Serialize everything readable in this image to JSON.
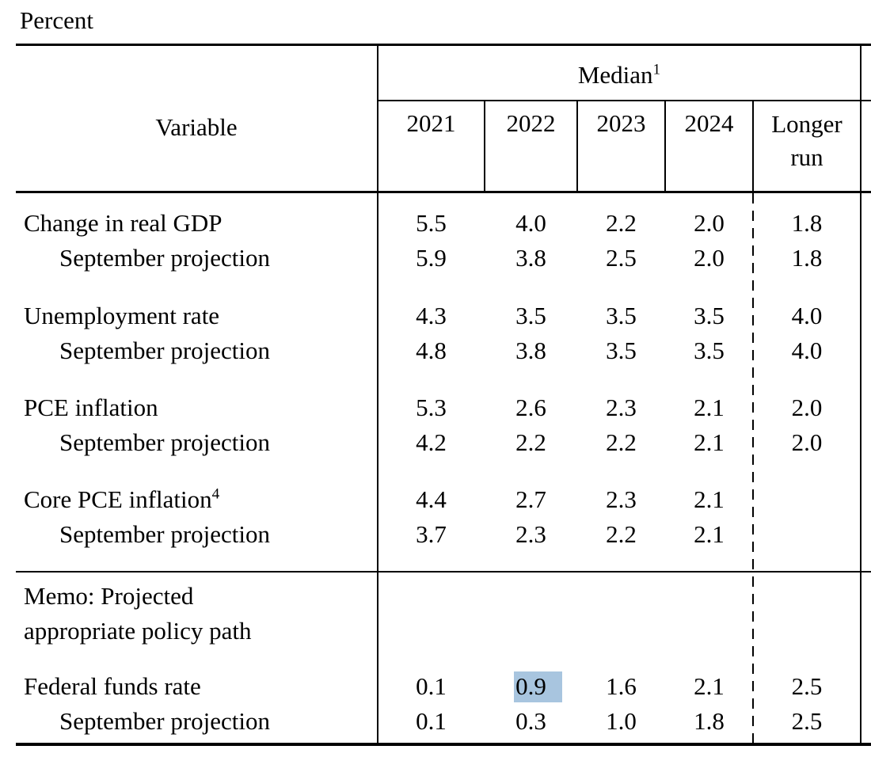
{
  "title": "Percent",
  "highlight_color": "#a8c5df",
  "table": {
    "variable_header": "Variable",
    "group_header": {
      "text": "Median",
      "superscript": "1"
    },
    "year_columns": [
      "2021",
      "2022",
      "2023",
      "2024"
    ],
    "longer_run_header": "Longer run",
    "rows": [
      {
        "label": "Change in real GDP",
        "indent": false,
        "values": [
          "5.5",
          "4.0",
          "2.2",
          "2.0",
          "1.8"
        ]
      },
      {
        "label": "September projection",
        "indent": true,
        "values": [
          "5.9",
          "3.8",
          "2.5",
          "2.0",
          "1.8"
        ]
      },
      {
        "label": "Unemployment rate",
        "indent": false,
        "values": [
          "4.3",
          "3.5",
          "3.5",
          "3.5",
          "4.0"
        ]
      },
      {
        "label": "September projection",
        "indent": true,
        "values": [
          "4.8",
          "3.8",
          "3.5",
          "3.5",
          "4.0"
        ]
      },
      {
        "label": "PCE inflation",
        "indent": false,
        "values": [
          "5.3",
          "2.6",
          "2.3",
          "2.1",
          "2.0"
        ]
      },
      {
        "label": "September projection",
        "indent": true,
        "values": [
          "4.2",
          "2.2",
          "2.2",
          "2.1",
          "2.0"
        ]
      },
      {
        "label": "Core PCE inflation",
        "superscript": "4",
        "indent": false,
        "values": [
          "4.4",
          "2.7",
          "2.3",
          "2.1",
          ""
        ]
      },
      {
        "label": "September projection",
        "indent": true,
        "values": [
          "3.7",
          "2.3",
          "2.2",
          "2.1",
          ""
        ]
      },
      {
        "label": "Federal funds rate",
        "indent": false,
        "values": [
          "0.1",
          "0.9",
          "1.6",
          "2.1",
          "2.5"
        ],
        "highlighted_value_index": 1
      },
      {
        "label": "September projection",
        "indent": true,
        "values": [
          "0.1",
          "0.3",
          "1.0",
          "1.8",
          "2.5"
        ]
      }
    ],
    "memo": {
      "line1": "Memo: Projected",
      "line2": "appropriate policy path"
    }
  }
}
